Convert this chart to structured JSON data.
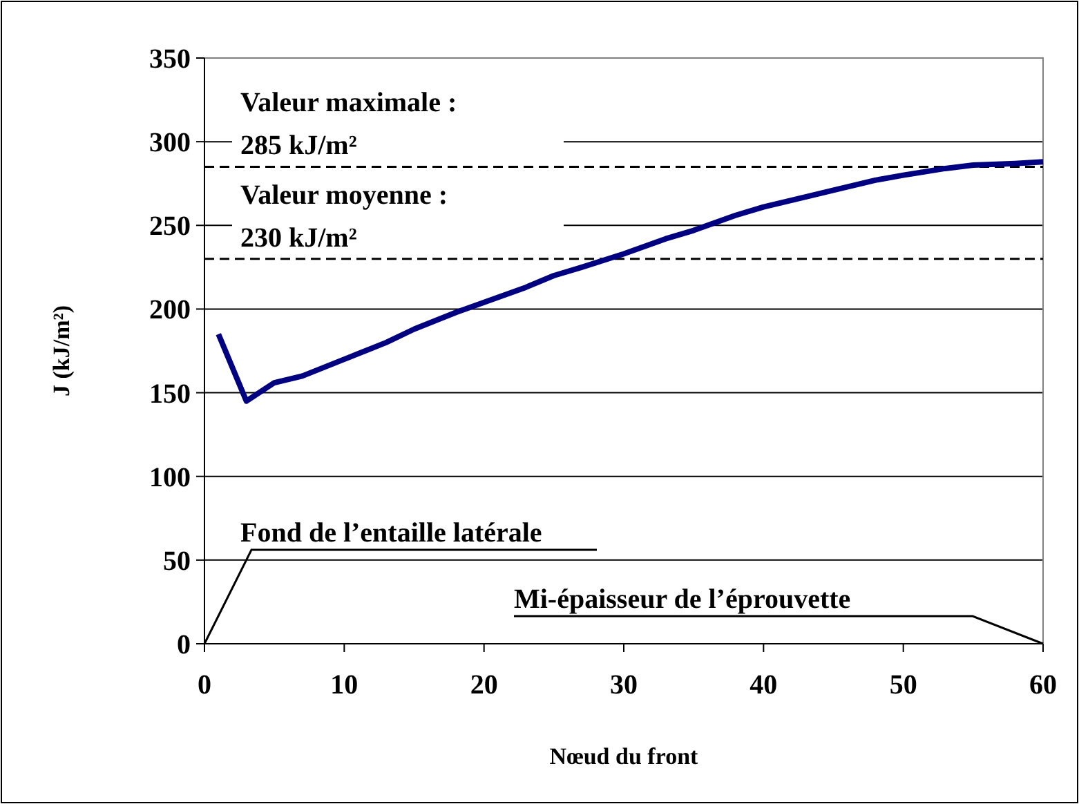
{
  "chart_data": {
    "type": "line",
    "xlabel": "Nœud du front",
    "ylabel": "J (kJ/m²)",
    "x": [
      1,
      3,
      5,
      7,
      10,
      13,
      15,
      18,
      20,
      23,
      25,
      27,
      30,
      33,
      35,
      38,
      40,
      43,
      45,
      48,
      50,
      53,
      55,
      58,
      60
    ],
    "series": [
      {
        "color": "#000080",
        "values": [
          185,
          145,
          156,
          160,
          170,
          180,
          188,
          198,
          204,
          213,
          220,
          225,
          233,
          242,
          247,
          256,
          261,
          267,
          271,
          277,
          280,
          284,
          286,
          287,
          288
        ]
      }
    ],
    "xlim": [
      0,
      60
    ],
    "xticks": [
      0,
      10,
      20,
      30,
      40,
      50,
      60
    ],
    "ylim": [
      0,
      350
    ],
    "yticks": [
      0,
      50,
      100,
      150,
      200,
      250,
      300,
      350
    ],
    "grid": "y",
    "marker": "none",
    "line_style": "solid",
    "ref_lines": [
      {
        "axis": "y",
        "value": 285,
        "label": "Valeur  maximale :\n285 kJ/m²",
        "color": "#000000",
        "line_style": "dashed"
      },
      {
        "axis": "y",
        "value": 230,
        "label": "Valeur moyenne :\n230 kJ/m²",
        "color": "#000000",
        "line_style": "dashed"
      }
    ],
    "annotations": [
      "Fond de l’entaille latérale",
      "Mi-épaisseur de l’éprouvette"
    ]
  }
}
